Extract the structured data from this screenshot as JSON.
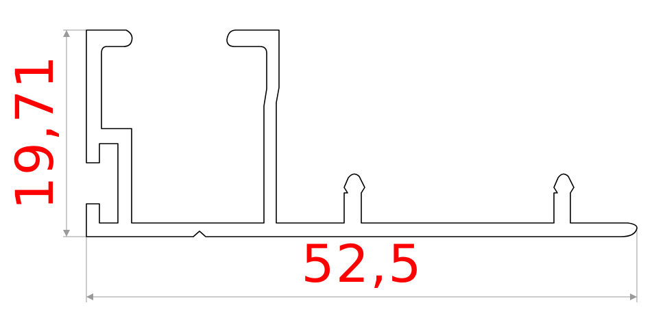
{
  "drawing": {
    "dimensions": {
      "height_label": "19,71",
      "width_label": "52,5"
    },
    "colors": {
      "profile_stroke": "#000000",
      "dimension_line": "#9a9a9a",
      "dimension_text": "#ff0000",
      "background": "#ffffff"
    }
  }
}
